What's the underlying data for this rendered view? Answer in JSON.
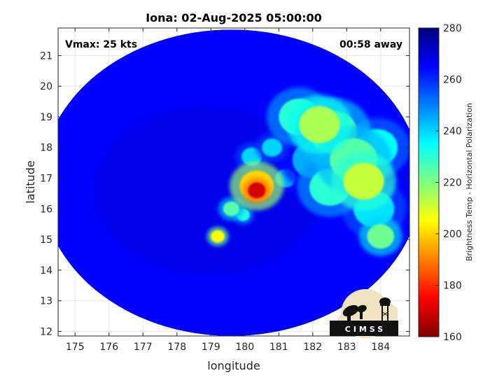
{
  "chart_data": {
    "type": "heatmap",
    "title": "Iona: 02-Aug-2025 05:00:00",
    "xlabel": "longitude",
    "ylabel": "latitude",
    "xlim": [
      174.5,
      184.85
    ],
    "ylim": [
      11.85,
      21.9
    ],
    "xticks": [
      175,
      176,
      177,
      178,
      179,
      180,
      181,
      182,
      183,
      184
    ],
    "yticks": [
      12,
      13,
      14,
      15,
      16,
      17,
      18,
      19,
      20,
      21
    ],
    "grid": true,
    "annotations": {
      "vmax": "Vmax: 25 kts",
      "away": "00:58 away"
    },
    "colorbar": {
      "label": "Brightness Temp - Horizontal Polarization",
      "range": [
        160,
        280
      ],
      "ticks": [
        160,
        180,
        200,
        220,
        240,
        260,
        280
      ],
      "colormap": "jet"
    },
    "swath": {
      "center_lon": 179.6,
      "center_lat": 16.85,
      "radius_lon": 5.6,
      "radius_lat": 5.0,
      "background_temp": 265
    },
    "features": [
      {
        "lon": 180.35,
        "lat": 16.6,
        "temp": 170,
        "sigma": 0.13
      },
      {
        "lon": 180.35,
        "lat": 16.75,
        "temp": 200,
        "sigma": 0.25
      },
      {
        "lon": 179.2,
        "lat": 15.1,
        "temp": 205,
        "sigma": 0.1
      },
      {
        "lon": 179.6,
        "lat": 16.0,
        "temp": 225,
        "sigma": 0.12
      },
      {
        "lon": 179.95,
        "lat": 15.8,
        "temp": 232,
        "sigma": 0.1
      },
      {
        "lon": 180.2,
        "lat": 17.7,
        "temp": 240,
        "sigma": 0.15
      },
      {
        "lon": 180.8,
        "lat": 18.0,
        "temp": 240,
        "sigma": 0.15
      },
      {
        "lon": 181.2,
        "lat": 17.0,
        "temp": 245,
        "sigma": 0.15
      },
      {
        "lon": 182.2,
        "lat": 18.75,
        "temp": 215,
        "sigma": 0.3
      },
      {
        "lon": 182.6,
        "lat": 18.5,
        "temp": 225,
        "sigma": 0.35
      },
      {
        "lon": 181.6,
        "lat": 19.0,
        "temp": 230,
        "sigma": 0.3
      },
      {
        "lon": 183.5,
        "lat": 16.9,
        "temp": 212,
        "sigma": 0.3
      },
      {
        "lon": 183.2,
        "lat": 17.6,
        "temp": 225,
        "sigma": 0.35
      },
      {
        "lon": 182.5,
        "lat": 16.7,
        "temp": 230,
        "sigma": 0.3
      },
      {
        "lon": 183.9,
        "lat": 18.0,
        "temp": 235,
        "sigma": 0.3
      },
      {
        "lon": 184.0,
        "lat": 15.1,
        "temp": 222,
        "sigma": 0.2
      },
      {
        "lon": 183.8,
        "lat": 16.0,
        "temp": 238,
        "sigma": 0.3
      },
      {
        "lon": 182.0,
        "lat": 17.6,
        "temp": 245,
        "sigma": 0.3
      }
    ]
  },
  "logo": {
    "text": "CIMSS"
  }
}
